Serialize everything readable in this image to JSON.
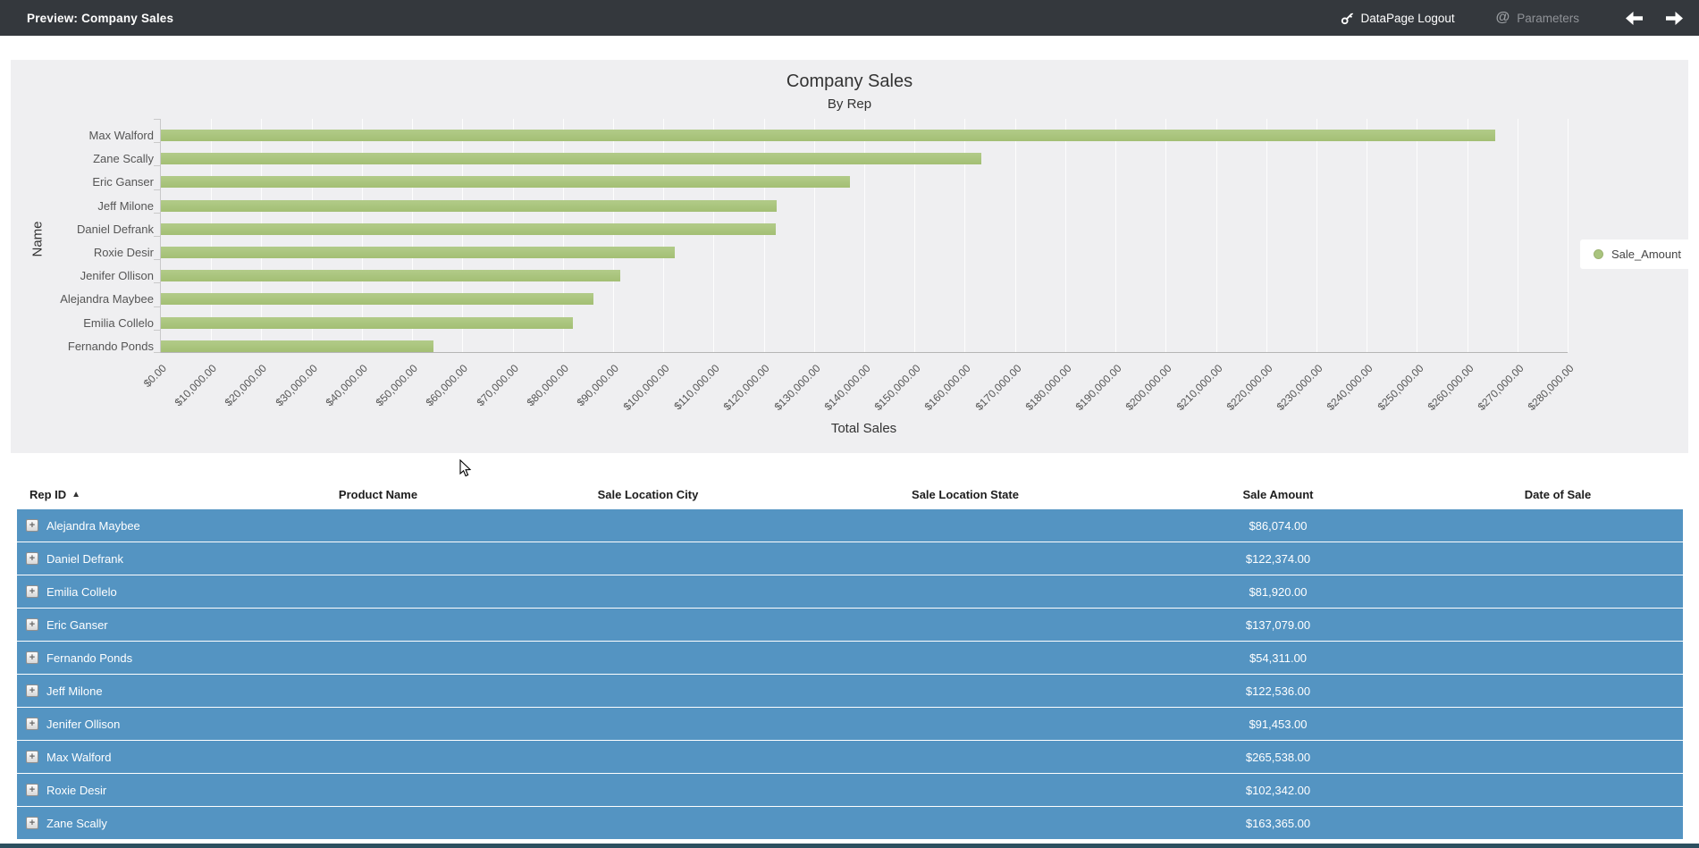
{
  "topbar": {
    "title": "Preview: Company Sales",
    "logout_label": "DataPage Logout",
    "parameters_label": "Parameters",
    "bg_color": "#34383d"
  },
  "chart_data": {
    "type": "bar",
    "orientation": "horizontal",
    "title": "Company Sales",
    "subtitle": "By Rep",
    "xlabel": "Total Sales",
    "ylabel": "Name",
    "legend": [
      "Sale_Amount"
    ],
    "legend_position": "right",
    "bar_color": "#a9c47e",
    "grid": true,
    "categories": [
      "Max Walford",
      "Zane Scally",
      "Eric Ganser",
      "Jeff Milone",
      "Daniel Defrank",
      "Roxie Desir",
      "Jenifer Ollison",
      "Alejandra Maybee",
      "Emilia Collelo",
      "Fernando Ponds"
    ],
    "values": [
      265538,
      163365,
      137079,
      122536,
      122374,
      102342,
      91453,
      86074,
      81920,
      54311
    ],
    "xlim": [
      0,
      280000
    ],
    "x_tick_interval": 10000,
    "x_ticks": [
      "$0.00",
      "$10,000.00",
      "$20,000.00",
      "$30,000.00",
      "$40,000.00",
      "$50,000.00",
      "$60,000.00",
      "$70,000.00",
      "$80,000.00",
      "$90,000.00",
      "$100,000.00",
      "$110,000.00",
      "$120,000.00",
      "$130,000.00",
      "$140,000.00",
      "$150,000.00",
      "$160,000.00",
      "$170,000.00",
      "$180,000.00",
      "$190,000.00",
      "$200,000.00",
      "$210,000.00",
      "$220,000.00",
      "$230,000.00",
      "$240,000.00",
      "$250,000.00",
      "$260,000.00",
      "$270,000.00",
      "$280,000.00"
    ]
  },
  "table": {
    "columns": [
      "Rep ID",
      "Product Name",
      "Sale Location City",
      "Sale Location State",
      "Sale Amount",
      "Date of Sale"
    ],
    "sort_column": "Rep ID",
    "sort_direction": "ascending",
    "row_bg_color": "#5494c2",
    "rows": [
      {
        "rep": "Alejandra Maybee",
        "amount": "$86,074.00"
      },
      {
        "rep": "Daniel Defrank",
        "amount": "$122,374.00"
      },
      {
        "rep": "Emilia Collelo",
        "amount": "$81,920.00"
      },
      {
        "rep": "Eric Ganser",
        "amount": "$137,079.00"
      },
      {
        "rep": "Fernando Ponds",
        "amount": "$54,311.00"
      },
      {
        "rep": "Jeff Milone",
        "amount": "$122,536.00"
      },
      {
        "rep": "Jenifer Ollison",
        "amount": "$91,453.00"
      },
      {
        "rep": "Max Walford",
        "amount": "$265,538.00"
      },
      {
        "rep": "Roxie Desir",
        "amount": "$102,342.00"
      },
      {
        "rep": "Zane Scally",
        "amount": "$163,365.00"
      }
    ]
  }
}
